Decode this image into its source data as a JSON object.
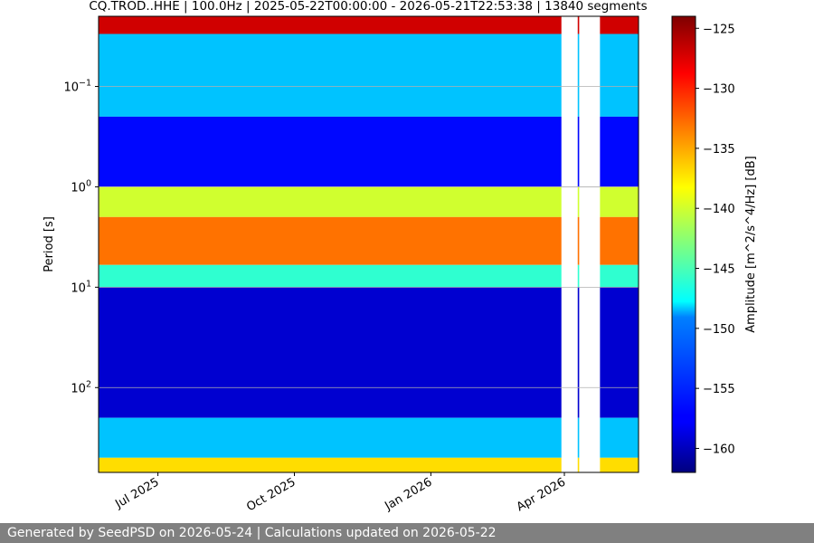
{
  "chart_data": {
    "type": "heatmap",
    "title": "CQ.TROD..HHE | 100.0Hz | 2025-05-22T00:00:00 - 2026-05-21T22:53:38 | 13840 segments",
    "xlabel": "",
    "ylabel": "Period [s]",
    "x_range": [
      "2025-05-22",
      "2026-05-21"
    ],
    "y_scale": "log",
    "y_range_seconds": [
      0.02,
      700
    ],
    "y_ticks": [
      {
        "value": 0.1,
        "label": "10^-1"
      },
      {
        "value": 1,
        "label": "10^0"
      },
      {
        "value": 10,
        "label": "10^1"
      },
      {
        "value": 100,
        "label": "10^2"
      }
    ],
    "x_ticks": [
      {
        "date": "2025-07-01",
        "label": "Jul 2025"
      },
      {
        "date": "2025-10-01",
        "label": "Oct 2025"
      },
      {
        "date": "2026-01-01",
        "label": "Jan 2026"
      },
      {
        "date": "2026-04-01",
        "label": "Apr 2026"
      }
    ],
    "grid": true,
    "colorbar": {
      "label": "Amplitude [m^2/s^4/Hz] [dB]",
      "range": [
        -162,
        -124
      ],
      "ticks": [
        -125,
        -130,
        -135,
        -140,
        -145,
        -150,
        -155,
        -160
      ],
      "colormap": "jet"
    },
    "period_bands": [
      {
        "period_min": 0.02,
        "period_max": 0.03,
        "amplitude_db": -127
      },
      {
        "period_min": 0.03,
        "period_max": 0.2,
        "amplitude_db": -150
      },
      {
        "period_min": 0.2,
        "period_max": 1.0,
        "amplitude_db": -157
      },
      {
        "period_min": 1.0,
        "period_max": 2.0,
        "amplitude_db": -140
      },
      {
        "period_min": 2.0,
        "period_max": 6.0,
        "amplitude_db": -133
      },
      {
        "period_min": 6.0,
        "period_max": 10.0,
        "amplitude_db": -146
      },
      {
        "period_min": 10.0,
        "period_max": 200.0,
        "amplitude_db": -159
      },
      {
        "period_min": 200.0,
        "period_max": 500.0,
        "amplitude_db": -150
      },
      {
        "period_min": 500.0,
        "period_max": 700.0,
        "amplitude_db": -137
      }
    ],
    "data_gaps": [
      [
        "2026-03-30",
        "2026-04-10"
      ],
      [
        "2026-04-11",
        "2026-04-25"
      ]
    ]
  },
  "footer": {
    "text": "Generated by SeedPSD on 2026-05-24 | Calculations updated on 2026-05-22"
  }
}
